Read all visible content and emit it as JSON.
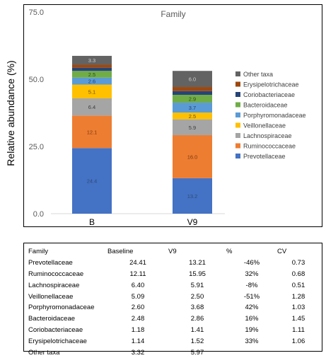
{
  "chart_data": {
    "type": "bar",
    "stacked": true,
    "title": "Family",
    "ylabel": "Relative abundance (%)",
    "xlabel": "",
    "ylim": [
      0,
      75
    ],
    "yticks": [
      "0.0",
      "25.0",
      "50.0",
      "75.0"
    ],
    "categories": [
      "B",
      "V9"
    ],
    "legend_position": "right",
    "series": [
      {
        "name": "Prevotellaceae",
        "color": "#4472C4",
        "values": [
          24.4,
          13.2
        ],
        "labels": [
          "24.4",
          "13.2"
        ],
        "label_color": "#2f4a7a"
      },
      {
        "name": "Ruminococcaceae",
        "color": "#ED7D31",
        "values": [
          12.1,
          16.0
        ],
        "labels": [
          "12.1",
          "16.0"
        ],
        "label_color": "#7a3a12"
      },
      {
        "name": "Lachnospiraceae",
        "color": "#A5A5A5",
        "values": [
          6.4,
          5.9
        ],
        "labels": [
          "6.4",
          "5.9"
        ],
        "label_color": "#3d3d3d"
      },
      {
        "name": "Veillonellaceae",
        "color": "#FFC000",
        "values": [
          5.1,
          2.5
        ],
        "labels": [
          "5.1",
          "2.5"
        ],
        "label_color": "#6b4f00"
      },
      {
        "name": "Porphyromonadaceae",
        "color": "#5B9BD5",
        "values": [
          2.6,
          3.7
        ],
        "labels": [
          "2.6",
          "3.7"
        ],
        "label_color": "#1f3f66"
      },
      {
        "name": "Bacteroidaceae",
        "color": "#70AD47",
        "values": [
          2.5,
          2.9
        ],
        "labels": [
          "2.5",
          "2.9"
        ],
        "label_color": "#2a4a18"
      },
      {
        "name": "Coriobacteriaceae",
        "color": "#264478",
        "values": [
          1.2,
          1.4
        ],
        "labels": [
          "",
          ""
        ],
        "label_color": "#ffffff"
      },
      {
        "name": "Erysipelotrichaceae",
        "color": "#9E480E",
        "values": [
          1.1,
          1.5
        ],
        "labels": [
          "",
          ""
        ],
        "label_color": "#ffffff"
      },
      {
        "name": "Other taxa",
        "color": "#636363",
        "values": [
          3.3,
          6.0
        ],
        "labels": [
          "3.3",
          "6.0"
        ],
        "label_color": "#cfcfcf"
      }
    ]
  },
  "table": {
    "headers": [
      "Family",
      "Baseline",
      "V9",
      "%",
      "CV"
    ],
    "rows": [
      [
        "Prevotellaceae",
        "24.41",
        "13.21",
        "-46%",
        "0.73"
      ],
      [
        "Ruminococcaceae",
        "12.11",
        "15.95",
        "32%",
        "0.68"
      ],
      [
        "Lachnospiraceae",
        "6.40",
        "5.91",
        "-8%",
        "0.51"
      ],
      [
        "Veillonellaceae",
        "5.09",
        "2.50",
        "-51%",
        "1.28"
      ],
      [
        "Porphyromonadaceae",
        "2.60",
        "3.68",
        "42%",
        "1.03"
      ],
      [
        "Bacteroidaceae",
        "2.48",
        "2.86",
        "16%",
        "1.45"
      ],
      [
        "Coriobacteriaceae",
        "1.18",
        "1.41",
        "19%",
        "1.11"
      ],
      [
        "Erysipelotrichaceae",
        "1.14",
        "1.52",
        "33%",
        "1.06"
      ],
      [
        "Other taxa",
        "3.32",
        "5.97",
        "",
        ""
      ]
    ]
  }
}
